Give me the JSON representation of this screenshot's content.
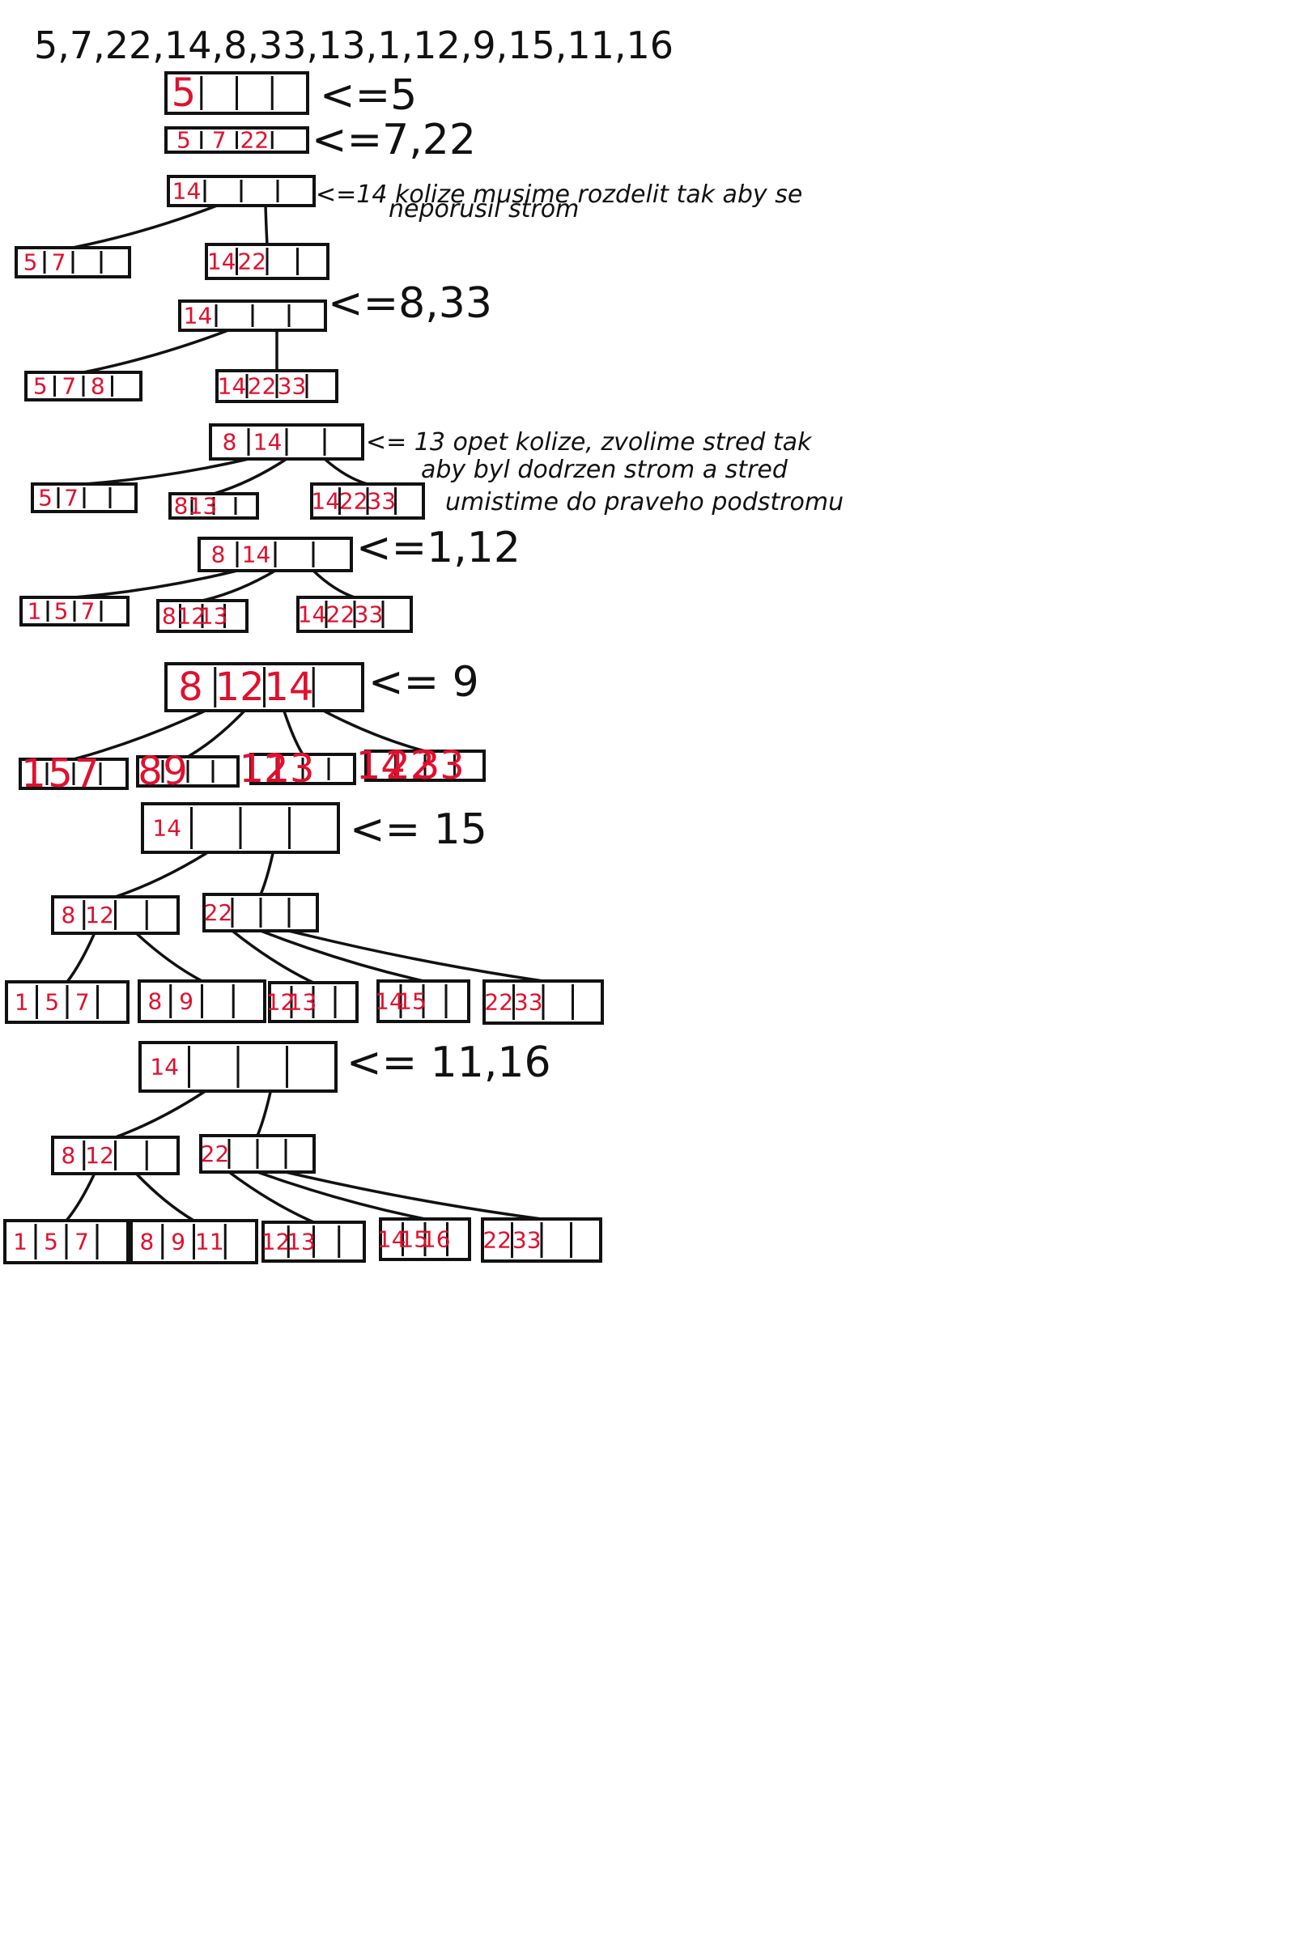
{
  "sequence": "5,7,22,14,8,33,13,1,12,9,15,11,16",
  "colors": {
    "ink": "#111111",
    "keys": "#e0102e"
  },
  "steps": [
    {
      "insert_label": "<=5",
      "nodes": [
        {
          "keys": [
            "5",
            "",
            "",
            ""
          ]
        }
      ],
      "note": []
    },
    {
      "insert_label": "<=7,22",
      "nodes": [
        {
          "keys": [
            "5",
            "7",
            "22",
            ""
          ]
        }
      ],
      "note": []
    },
    {
      "insert_label": "<=14 kolize musime rozdelit tak aby se",
      "nodes": [
        {
          "keys": [
            "14",
            "",
            "",
            ""
          ]
        },
        {
          "keys": [
            "5",
            "7",
            "",
            ""
          ]
        },
        {
          "keys": [
            "14",
            "22",
            "",
            ""
          ]
        }
      ],
      "note": [
        "neporusil strom"
      ]
    },
    {
      "insert_label": "<=8,33",
      "nodes": [
        {
          "keys": [
            "14",
            "",
            "",
            ""
          ]
        },
        {
          "keys": [
            "5",
            "7",
            "8",
            ""
          ]
        },
        {
          "keys": [
            "14",
            "22",
            "33",
            ""
          ]
        }
      ],
      "note": []
    },
    {
      "insert_label": "<= 13 opet kolize, zvolime stred tak",
      "nodes": [
        {
          "keys": [
            "8",
            "14",
            "",
            ""
          ]
        },
        {
          "keys": [
            "5",
            "7",
            "",
            ""
          ]
        },
        {
          "keys": [
            "8",
            "13",
            "",
            ""
          ]
        },
        {
          "keys": [
            "14",
            "22",
            "33",
            ""
          ]
        }
      ],
      "note": [
        "aby byl dodrzen strom a stred",
        "umistime do praveho podstromu"
      ]
    },
    {
      "insert_label": "<=1,12",
      "nodes": [
        {
          "keys": [
            "8",
            "14",
            "",
            ""
          ]
        },
        {
          "keys": [
            "1",
            "5",
            "7",
            ""
          ]
        },
        {
          "keys": [
            "8",
            "12",
            "13",
            ""
          ]
        },
        {
          "keys": [
            "14",
            "22",
            "33",
            ""
          ]
        }
      ],
      "note": []
    },
    {
      "insert_label": "<= 9",
      "nodes": [
        {
          "keys": [
            "8",
            "12",
            "14",
            ""
          ]
        },
        {
          "keys": [
            "1",
            "5",
            "7",
            ""
          ]
        },
        {
          "keys": [
            "8",
            "9",
            "",
            ""
          ]
        },
        {
          "keys": [
            "12",
            "13",
            "",
            ""
          ]
        },
        {
          "keys": [
            "14",
            "22",
            "33",
            ""
          ]
        }
      ],
      "note": []
    },
    {
      "insert_label": "<= 15",
      "nodes": [
        {
          "keys": [
            "14",
            "",
            "",
            ""
          ]
        },
        {
          "keys": [
            "8",
            "12",
            "",
            ""
          ]
        },
        {
          "keys": [
            "22",
            "",
            "",
            ""
          ]
        },
        {
          "keys": [
            "1",
            "5",
            "7",
            ""
          ]
        },
        {
          "keys": [
            "8",
            "9",
            "",
            ""
          ]
        },
        {
          "keys": [
            "12",
            "13",
            "",
            ""
          ]
        },
        {
          "keys": [
            "14",
            "15",
            "",
            ""
          ]
        },
        {
          "keys": [
            "22",
            "33",
            "",
            ""
          ]
        }
      ],
      "note": []
    },
    {
      "insert_label": "<= 11,16",
      "nodes": [
        {
          "keys": [
            "14",
            "",
            "",
            ""
          ]
        },
        {
          "keys": [
            "8",
            "12",
            "",
            ""
          ]
        },
        {
          "keys": [
            "22",
            "",
            "",
            ""
          ]
        },
        {
          "keys": [
            "1",
            "5",
            "7",
            ""
          ]
        },
        {
          "keys": [
            "8",
            "9",
            "11",
            ""
          ]
        },
        {
          "keys": [
            "12",
            "13",
            "",
            ""
          ]
        },
        {
          "keys": [
            "14",
            "15",
            "16",
            ""
          ]
        },
        {
          "keys": [
            "22",
            "33",
            "",
            ""
          ]
        }
      ],
      "note": []
    }
  ]
}
